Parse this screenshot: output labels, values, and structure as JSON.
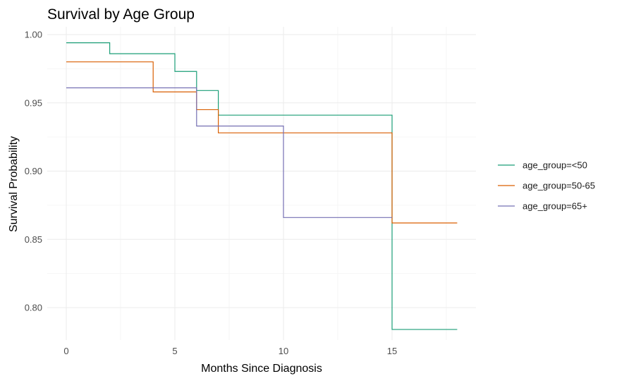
{
  "chart_data": {
    "type": "line",
    "step": true,
    "title": "Survival by Age Group",
    "xlabel": "Months Since Diagnosis",
    "ylabel": "Survival Probability",
    "xlim": [
      -1,
      18.5
    ],
    "ylim": [
      0.777,
      1.006
    ],
    "x_ticks": [
      0,
      5,
      10,
      15
    ],
    "x_tick_labels": [
      "0",
      "5",
      "10",
      "15"
    ],
    "y_ticks": [
      0.8,
      0.85,
      0.9,
      0.95,
      1.0
    ],
    "y_tick_labels": [
      "0.80",
      "0.85",
      "0.90",
      "0.95",
      "1.00"
    ],
    "grid": true,
    "legend_position": "right",
    "series": [
      {
        "name": "age_group=<50",
        "color": "#1b9e77",
        "x": [
          0,
          2,
          5,
          6,
          7,
          15,
          18
        ],
        "y": [
          0.994,
          0.986,
          0.973,
          0.959,
          0.941,
          0.784,
          0.784
        ]
      },
      {
        "name": "age_group=50-65",
        "color": "#d95f02",
        "x": [
          0,
          4,
          6,
          7,
          15,
          18
        ],
        "y": [
          0.98,
          0.958,
          0.945,
          0.928,
          0.862,
          0.862
        ]
      },
      {
        "name": "age_group=65+",
        "color": "#7570b3",
        "x": [
          0,
          6,
          10,
          15
        ],
        "y": [
          0.961,
          0.933,
          0.866,
          0.866
        ]
      }
    ]
  }
}
